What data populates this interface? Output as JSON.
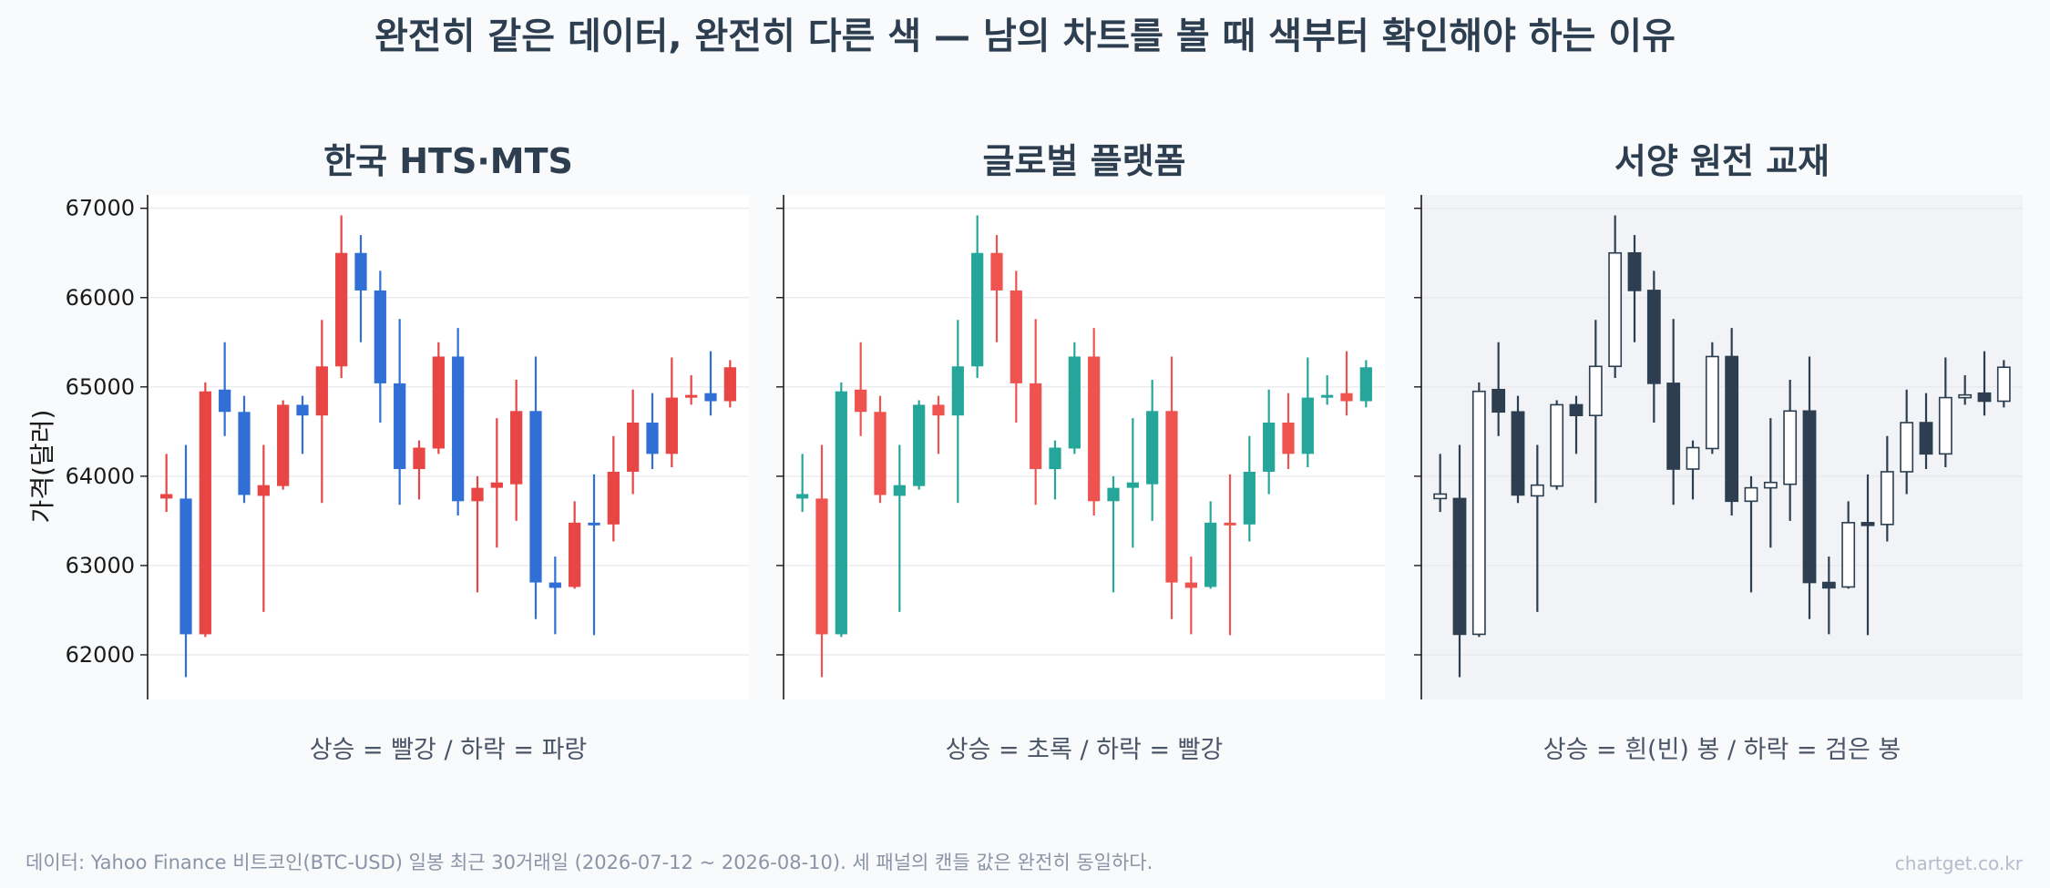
{
  "title": "완전히 같은 데이터, 완전히 다른 색 — 남의 차트를 볼 때 색부터 확인해야 하는 이유",
  "footnote": "데이터: Yahoo Finance 비트코인(BTC-USD) 일봉 최근 30거래일 (2026-07-12 ~ 2026-08-10). 세 패널의 캔들 값은 완전히 동일하다.",
  "watermark": "chartget.co.kr",
  "colors": {
    "kr_up": "#e84545",
    "kr_down": "#2f6fd6",
    "gl_up": "#26a69a",
    "gl_down": "#ef5350",
    "west_ink": "#2c3e50",
    "west_hollow": "#ffffff",
    "west_bg": "#f1f3f7",
    "grid": "#e6e8ec",
    "axis": "#1a1a1a"
  },
  "chart_data": {
    "type": "candlestick",
    "ylabel": "가격(달러)",
    "ylim": [
      61500,
      67150
    ],
    "yticks": [
      62000,
      63000,
      64000,
      65000,
      66000,
      67000
    ],
    "grid": "horizontal",
    "panels": [
      {
        "title": "한국 HTS·MTS",
        "subtitle": "상승 = 빨강 / 하락 = 파랑",
        "style": "korean"
      },
      {
        "title": "글로벌 플랫폼",
        "subtitle": "상승 = 초록 / 하락 = 빨강",
        "style": "global"
      },
      {
        "title": "서양 원전 교재",
        "subtitle": "상승 = 흰(빈) 봉 / 하락 = 검은 봉",
        "style": "western"
      }
    ],
    "candles": [
      {
        "open": 63750,
        "high": 64250,
        "low": 63600,
        "close": 63800
      },
      {
        "open": 63750,
        "high": 64350,
        "low": 61750,
        "close": 62230
      },
      {
        "open": 62230,
        "high": 65050,
        "low": 62200,
        "close": 64950
      },
      {
        "open": 64970,
        "high": 65500,
        "low": 64450,
        "close": 64720
      },
      {
        "open": 64720,
        "high": 64900,
        "low": 63700,
        "close": 63790
      },
      {
        "open": 63780,
        "high": 64350,
        "low": 62480,
        "close": 63900
      },
      {
        "open": 63890,
        "high": 64850,
        "low": 63850,
        "close": 64800
      },
      {
        "open": 64800,
        "high": 64900,
        "low": 64250,
        "close": 64680
      },
      {
        "open": 64680,
        "high": 65750,
        "low": 63700,
        "close": 65230
      },
      {
        "open": 65230,
        "high": 66920,
        "low": 65100,
        "close": 66500
      },
      {
        "open": 66500,
        "high": 66700,
        "low": 65500,
        "close": 66080
      },
      {
        "open": 66080,
        "high": 66300,
        "low": 64600,
        "close": 65040
      },
      {
        "open": 65040,
        "high": 65760,
        "low": 63680,
        "close": 64080
      },
      {
        "open": 64080,
        "high": 64400,
        "low": 63740,
        "close": 64320
      },
      {
        "open": 64310,
        "high": 65500,
        "low": 64250,
        "close": 65340
      },
      {
        "open": 65340,
        "high": 65660,
        "low": 63560,
        "close": 63720
      },
      {
        "open": 63720,
        "high": 64000,
        "low": 62700,
        "close": 63870
      },
      {
        "open": 63870,
        "high": 64650,
        "low": 63200,
        "close": 63930
      },
      {
        "open": 63910,
        "high": 65080,
        "low": 63500,
        "close": 64730
      },
      {
        "open": 64730,
        "high": 65340,
        "low": 62400,
        "close": 62810
      },
      {
        "open": 62810,
        "high": 63100,
        "low": 62230,
        "close": 62750
      },
      {
        "open": 62760,
        "high": 63720,
        "low": 62740,
        "close": 63480
      },
      {
        "open": 63480,
        "high": 64020,
        "low": 62220,
        "close": 63470
      },
      {
        "open": 63460,
        "high": 64450,
        "low": 63270,
        "close": 64050
      },
      {
        "open": 64050,
        "high": 64970,
        "low": 63800,
        "close": 64600
      },
      {
        "open": 64600,
        "high": 64930,
        "low": 64080,
        "close": 64250
      },
      {
        "open": 64250,
        "high": 65330,
        "low": 64100,
        "close": 64880
      },
      {
        "open": 64880,
        "high": 65130,
        "low": 64800,
        "close": 64910
      },
      {
        "open": 64930,
        "high": 65400,
        "low": 64680,
        "close": 64840
      },
      {
        "open": 64840,
        "high": 65300,
        "low": 64770,
        "close": 65220
      }
    ]
  }
}
